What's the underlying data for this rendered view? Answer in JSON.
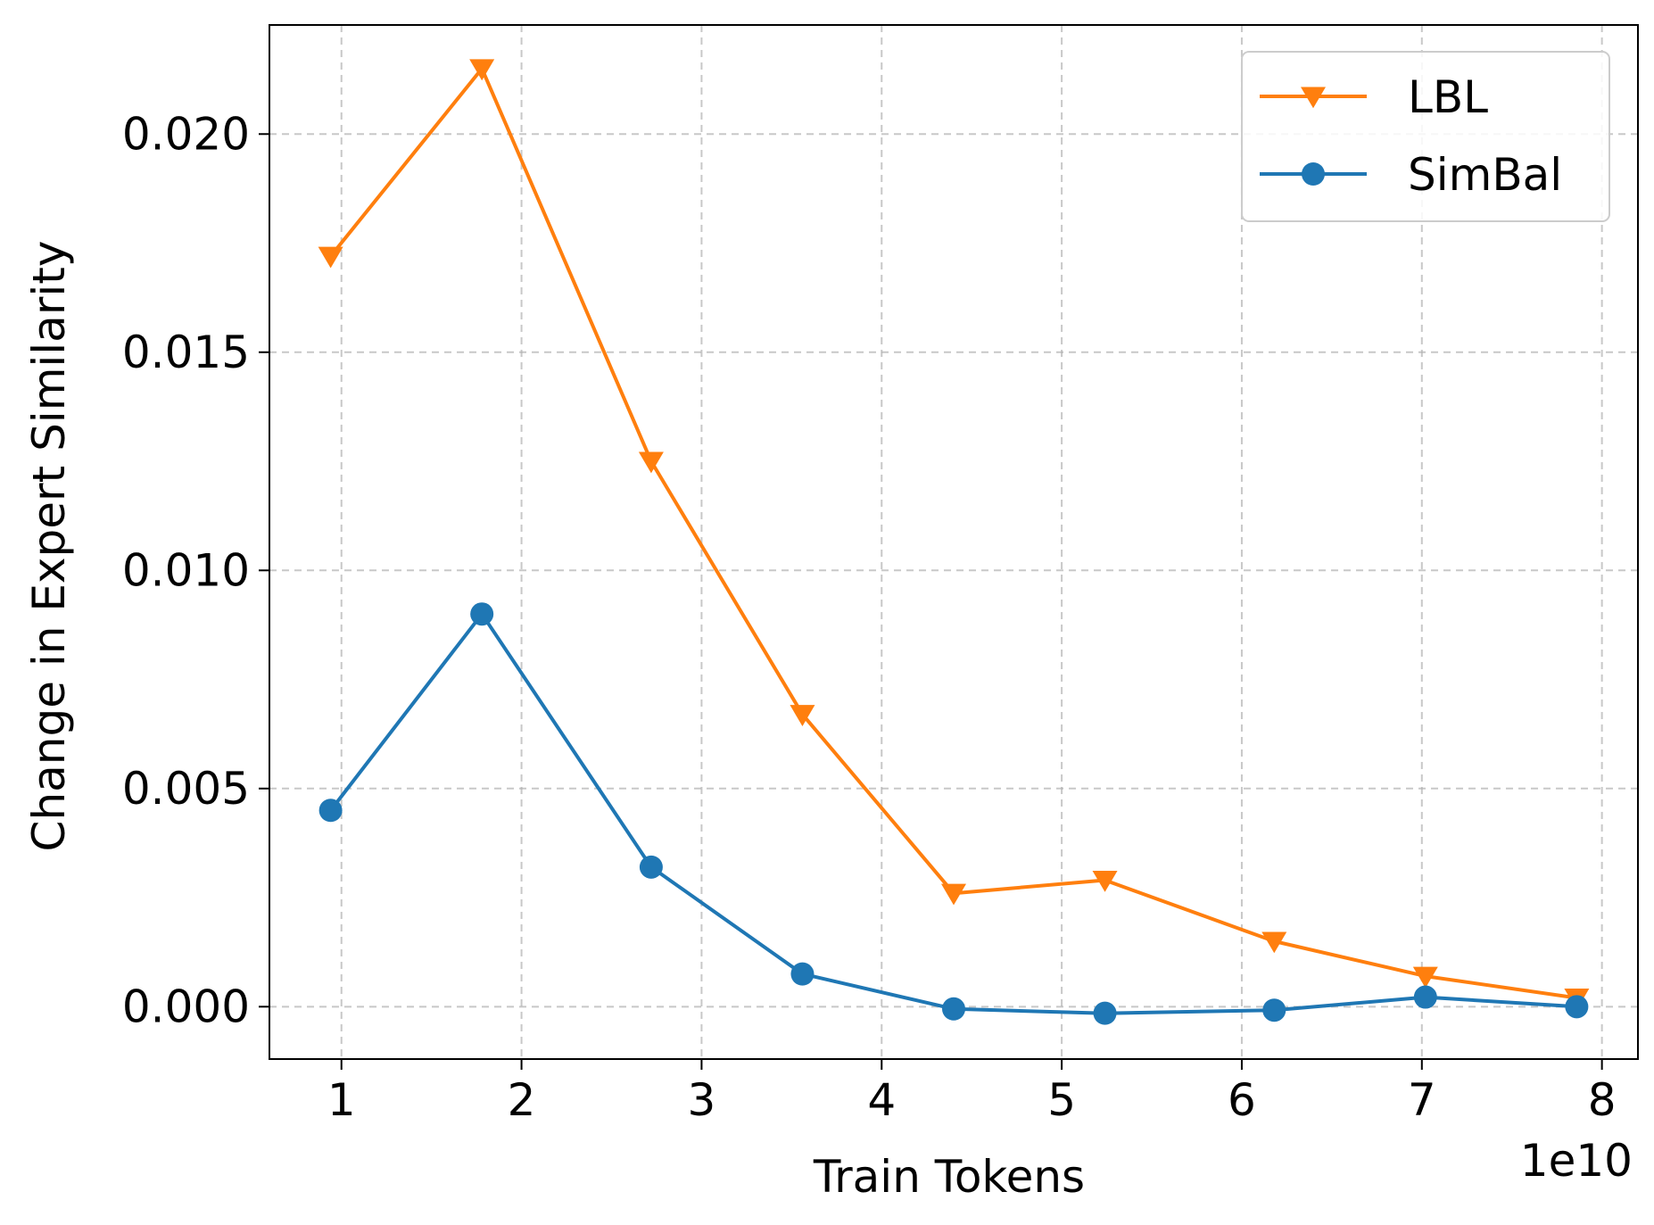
{
  "chart_data": {
    "type": "line",
    "xlabel": "Train Tokens",
    "ylabel": "Change in Expert Similarity",
    "x_offset_label": "1e10",
    "xlim": [
      0.6,
      8.2
    ],
    "ylim": [
      -0.0012,
      0.0225
    ],
    "x_ticks": [
      1,
      2,
      3,
      4,
      5,
      6,
      7,
      8
    ],
    "y_ticks": [
      0.0,
      0.005,
      0.01,
      0.015,
      0.02
    ],
    "x_tick_labels": [
      "1",
      "2",
      "3",
      "4",
      "5",
      "6",
      "7",
      "8"
    ],
    "y_tick_labels": [
      "0.000",
      "0.005",
      "0.010",
      "0.015",
      "0.020"
    ],
    "grid": true,
    "legend_position": "top-right",
    "series": [
      {
        "name": "LBL",
        "color": "#ff7f0e",
        "marker": "triangle-down",
        "x": [
          0.94,
          1.78,
          2.72,
          3.56,
          4.4,
          5.24,
          6.18,
          7.02,
          7.86
        ],
        "y": [
          0.0172,
          0.0215,
          0.0125,
          0.0067,
          0.0026,
          0.0029,
          0.0015,
          0.0007,
          0.0002
        ]
      },
      {
        "name": "SimBal",
        "color": "#1f77b4",
        "marker": "circle",
        "x": [
          0.94,
          1.78,
          2.72,
          3.56,
          4.4,
          5.24,
          6.18,
          7.02,
          7.86
        ],
        "y": [
          0.0045,
          0.009,
          0.0032,
          0.00075,
          -5e-05,
          -0.00015,
          -8e-05,
          0.00022,
          0.0
        ]
      }
    ]
  }
}
